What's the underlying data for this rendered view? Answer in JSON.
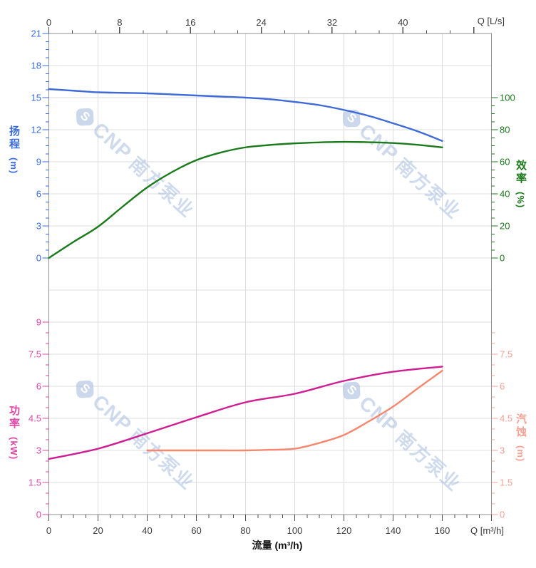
{
  "titles": {
    "q_ls": "Q [L/s]",
    "q_m3h": "Q [m³/h]",
    "flow": "流量 (m³/h)"
  },
  "watermark": {
    "brand": "CNP",
    "brand_cn": "南方泵业",
    "logo_letter": "S"
  },
  "axes": {
    "head": {
      "name": "扬程",
      "unit": "(m)",
      "color": "#3e6ad8",
      "label_color": "#3a6ce0",
      "major_step": 3,
      "minor_step": 0.75,
      "min": 0,
      "max": 21,
      "labels": [
        "0",
        "3",
        "6",
        "9",
        "12",
        "15",
        "18",
        "21"
      ]
    },
    "efficiency": {
      "name": "效率",
      "unit": "(%)",
      "color": "#1b7a1b",
      "label_color": "#1b7a1b",
      "major_step": 20,
      "minor_step": 5,
      "min": 0,
      "max": 100,
      "labels": [
        "0",
        "20",
        "40",
        "60",
        "80",
        "100"
      ]
    },
    "power": {
      "name": "功率",
      "unit": "(kW)",
      "color": "#cf1d92",
      "label_color": "#dd47a6",
      "major_step": 1.5,
      "minor_step": 0.5,
      "min": 0,
      "max": 9,
      "labels": [
        "0",
        "1.5",
        "3",
        "4.5",
        "6",
        "7.5",
        "9"
      ]
    },
    "npsh": {
      "name": "汽蚀",
      "unit": "(m)",
      "color": "#f5876f",
      "label_color": "#f7a094",
      "major_step": 1.5,
      "minor_step": 0.5,
      "min": 0,
      "max": 7.5,
      "minor_max": 8.5,
      "labels": [
        "0",
        "1.5",
        "3",
        "4.5",
        "6",
        "7.5"
      ]
    },
    "flow_bottom": {
      "color": "#3c3c3c",
      "major_step": 20,
      "minor_step": 5,
      "min": 0,
      "max": 180,
      "labels": [
        "0",
        "20",
        "40",
        "60",
        "80",
        "100",
        "120",
        "140",
        "160"
      ]
    },
    "flow_top_ls": {
      "color": "#3c3c3c",
      "major_step": 8,
      "min": 0,
      "max": 50,
      "labels": [
        "0",
        "8",
        "16",
        "24",
        "32",
        "40"
      ]
    }
  },
  "chart_data": [
    {
      "type": "line",
      "title": "扬程 / 效率 vs 流量 (pump head & efficiency curves)",
      "x_label_bottom": "流量 (m³/h)",
      "x_label_top": "Q [L/s]",
      "x_range": [
        0,
        180
      ],
      "grid": true,
      "series": [
        {
          "name": "扬程",
          "axis": "head",
          "unit": "m",
          "y_range": [
            0,
            21
          ],
          "color": "#3e6ad8",
          "x": [
            0,
            10,
            20,
            30,
            40,
            50,
            60,
            70,
            80,
            90,
            100,
            110,
            120,
            130,
            140,
            150,
            160
          ],
          "y": [
            15.8,
            15.65,
            15.5,
            15.45,
            15.4,
            15.3,
            15.2,
            15.1,
            15.0,
            14.85,
            14.6,
            14.3,
            13.85,
            13.3,
            12.6,
            11.85,
            10.95
          ]
        },
        {
          "name": "效率",
          "axis": "efficiency",
          "unit": "%",
          "y_range": [
            0,
            100
          ],
          "color": "#1b7a1b",
          "x": [
            0,
            10,
            20,
            30,
            40,
            50,
            60,
            70,
            80,
            90,
            100,
            110,
            120,
            130,
            140,
            150,
            160
          ],
          "y": [
            0,
            10,
            19.5,
            32,
            44,
            53.5,
            61,
            65.8,
            69,
            70.5,
            71.5,
            72.1,
            72.4,
            72.2,
            71.7,
            70.6,
            69
          ]
        }
      ]
    },
    {
      "type": "line",
      "title": "功率 / 汽蚀 vs 流量 (pump power & NPSH curves)",
      "x_range": [
        0,
        180
      ],
      "grid": true,
      "series": [
        {
          "name": "功率",
          "axis": "power",
          "unit": "kW",
          "y_range": [
            0,
            9
          ],
          "color": "#cf1d92",
          "x": [
            0,
            20,
            40,
            60,
            80,
            100,
            120,
            140,
            160
          ],
          "y": [
            2.6,
            3.08,
            3.8,
            4.55,
            5.25,
            5.65,
            6.25,
            6.68,
            6.92
          ]
        },
        {
          "name": "汽蚀",
          "axis": "npsh",
          "unit": "m",
          "y_range": [
            0,
            7.5
          ],
          "color": "#f5876f",
          "x": [
            40,
            50,
            60,
            70,
            80,
            90,
            100,
            110,
            120,
            130,
            140,
            150,
            160
          ],
          "y": [
            3.0,
            3.0,
            3.0,
            3.0,
            3.0,
            3.03,
            3.08,
            3.35,
            3.72,
            4.35,
            5.05,
            5.9,
            6.73
          ]
        }
      ]
    }
  ]
}
